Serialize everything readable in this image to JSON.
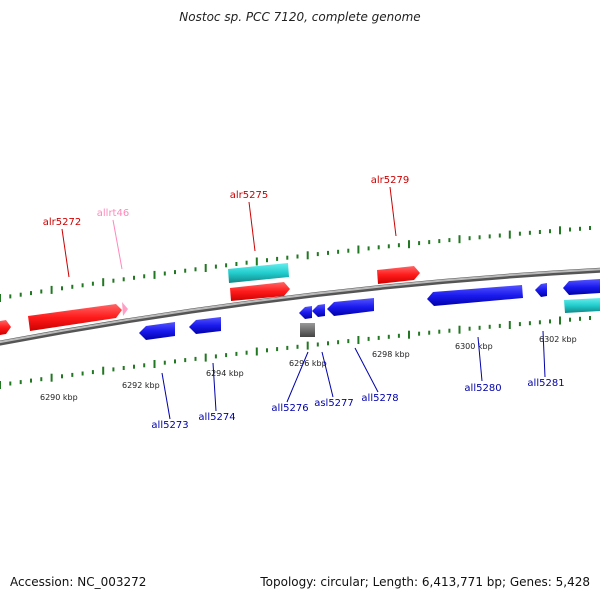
{
  "title": "Nostoc sp. PCC 7120, complete genome",
  "accession_label": "Accession: NC_003272",
  "summary": "Topology: circular; Length: 6,413,771 bp; Genes: 5,428",
  "colors": {
    "forward_gene": "#ff1a1a",
    "reverse_gene": "#1a1aee",
    "rna_gene": "#22cccc",
    "pseudo_label": "#ff88bb",
    "tick": "#227722",
    "backbone": "#888888",
    "forward_label": "#cc0000",
    "reverse_label": "#0000aa"
  },
  "kbp_labels": [
    "6290 kbp",
    "6292 kbp",
    "6294 kbp",
    "6296 kbp",
    "6298 kbp",
    "6300 kbp",
    "6302 kbp"
  ],
  "forward_genes": [
    "alr5272",
    "allrt46",
    "alr5275",
    "alr5279"
  ],
  "reverse_genes": [
    "all5273",
    "all5274",
    "all5276",
    "asl5277",
    "all5278",
    "all5280",
    "all5281"
  ]
}
